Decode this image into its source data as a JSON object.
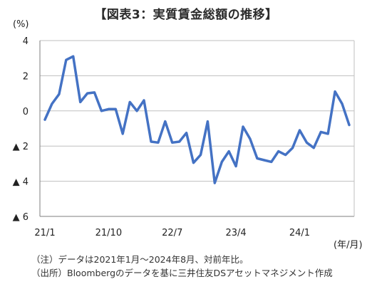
{
  "title": "【図表3：実質賃金総額の推移】",
  "chart_data": {
    "type": "line",
    "title": "【図表3：実質賃金総額の推移】",
    "y_unit": "(%)",
    "x_unit": "(年/月)",
    "ylim": [
      -6,
      4
    ],
    "y_ticks": [
      {
        "value": 4,
        "label": "4"
      },
      {
        "value": 2,
        "label": "2"
      },
      {
        "value": 0,
        "label": "0"
      },
      {
        "value": -2,
        "label": "▲ 2"
      },
      {
        "value": -4,
        "label": "▲ 4"
      },
      {
        "value": -6,
        "label": "▲ 6"
      }
    ],
    "x_ticks": [
      {
        "index": 0,
        "label": "21/1"
      },
      {
        "index": 9,
        "label": "21/10"
      },
      {
        "index": 18,
        "label": "22/7"
      },
      {
        "index": 27,
        "label": "23/4"
      },
      {
        "index": 36,
        "label": "24/1"
      }
    ],
    "grid": true,
    "series": [
      {
        "color": "#4472c4",
        "x": [
          "21/1",
          "21/2",
          "21/3",
          "21/4",
          "21/5",
          "21/6",
          "21/7",
          "21/8",
          "21/9",
          "21/10",
          "21/11",
          "21/12",
          "22/1",
          "22/2",
          "22/3",
          "22/4",
          "22/5",
          "22/6",
          "22/7",
          "22/8",
          "22/9",
          "22/10",
          "22/11",
          "22/12",
          "23/1",
          "23/2",
          "23/3",
          "23/4",
          "23/5",
          "23/6",
          "23/7",
          "23/8",
          "23/9",
          "23/10",
          "23/11",
          "23/12",
          "24/1",
          "24/2",
          "24/3",
          "24/4",
          "24/5",
          "24/6",
          "24/7",
          "24/8"
        ],
        "values": [
          -0.5,
          0.4,
          0.95,
          2.9,
          3.1,
          0.5,
          1.0,
          1.05,
          0.0,
          0.1,
          0.1,
          -1.3,
          0.5,
          0.0,
          0.6,
          -1.75,
          -1.8,
          -0.6,
          -1.8,
          -1.75,
          -1.25,
          -2.95,
          -2.5,
          -0.6,
          -4.1,
          -2.9,
          -2.3,
          -3.15,
          -0.9,
          -1.6,
          -2.7,
          -2.8,
          -2.9,
          -2.3,
          -2.5,
          -2.1,
          -1.1,
          -1.8,
          -2.1,
          -1.2,
          -1.3,
          1.1,
          0.4,
          -0.8
        ]
      }
    ]
  },
  "notes": [
    "（注）データは2021年1月～2024年8月、対前年比。",
    "（出所）Bloombergのデータを基に三井住友DSアセットマネジメント作成"
  ]
}
